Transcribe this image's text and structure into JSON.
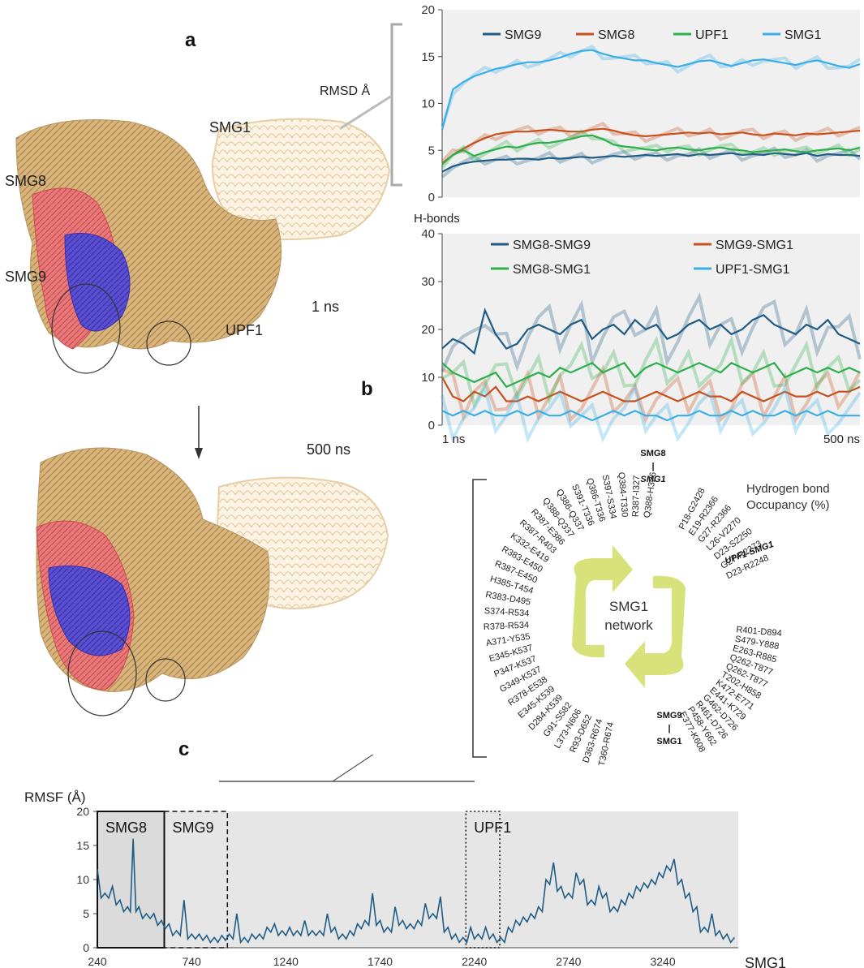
{
  "figure": {
    "panel_a": "a",
    "panel_b": "b",
    "panel_c": "c",
    "structure_labels": {
      "smg8": "SMG8",
      "smg9": "SMG9",
      "smg1": "SMG1",
      "upf1": "UPF1",
      "time_top": "1 ns",
      "time_bottom": "500 ns"
    },
    "rmsd_label": "RMSD  Å",
    "hbonds_label": "H-bonds",
    "hbonds_x_start": "1 ns",
    "hbonds_x_end": "500 ns",
    "network_center": [
      "SMG1",
      "network"
    ],
    "occupancy_title": [
      "Hydrogen bond",
      "Occupancy (%)"
    ],
    "group_smg8": [
      "SMG8",
      "|",
      "SMG1"
    ],
    "group_upf1": "UPF1-SMG1",
    "group_smg9": [
      "SMG9",
      "|",
      "SMG1"
    ],
    "pairs_left": [
      "Q388-H326",
      "R387-I327",
      "Q384-T330",
      "S397-S334",
      "Q386-T336",
      "S391-T336",
      "Q386-Q337",
      "Q388-Q337",
      "R387-E386",
      "R387-R403",
      "K332-E419",
      "R383-E450",
      "R387-E450",
      "H385-T454",
      "R383-D495",
      "S374-R534",
      "R378-R534",
      "A371-Y535",
      "E345-K537",
      "P347-K537",
      "G349-K537",
      "R378-E538",
      "E345-K539",
      "D284-K539",
      "G91-S582",
      "L373-N606",
      "R93-D652",
      "D363-R674",
      "T360-R674"
    ],
    "pairs_upf1": [
      "P18-G2428",
      "E19-R2366",
      "G27-R2366",
      "L26-V2270",
      "D23-S2250",
      "G27-R2273",
      "D23-R2248"
    ],
    "pairs_smg9": [
      "R401-D894",
      "S479-Y888",
      "E263-R885",
      "Q262-T877",
      "Q262-T877",
      "T202-H858",
      "K472-E771",
      "E441-K729",
      "G462-D726",
      "R461-D726",
      "P458-Y662",
      "E377-K608"
    ]
  },
  "chart_data": [
    {
      "type": "line",
      "id": "rmsd",
      "ylim": [
        0,
        20
      ],
      "yticks": [
        0,
        5,
        10,
        15,
        20
      ],
      "x_range_ns": [
        1,
        500
      ],
      "series": [
        {
          "name": "SMG9",
          "color": "#1f5c85",
          "values": [
            2.7,
            3.3,
            3.6,
            3.8,
            3.9,
            4.0,
            4.0,
            4.1,
            4.1,
            4.0,
            4.2,
            4.1,
            4.2,
            4.3,
            4.2,
            4.3,
            4.4,
            4.3,
            4.4,
            4.5,
            4.4,
            4.5,
            4.6,
            4.4,
            4.6,
            4.5,
            4.6,
            4.7,
            4.5,
            4.6,
            4.5,
            4.7,
            4.6,
            4.5,
            4.7,
            4.4,
            4.6,
            4.5,
            4.5,
            4.4
          ]
        },
        {
          "name": "SMG8",
          "color": "#c8501e",
          "values": [
            3.6,
            4.5,
            5.2,
            5.8,
            6.3,
            6.7,
            6.9,
            7.0,
            7.0,
            7.1,
            7.2,
            7.1,
            7.0,
            7.0,
            7.2,
            7.3,
            7.1,
            6.8,
            6.6,
            6.5,
            6.6,
            6.7,
            6.8,
            6.9,
            6.8,
            6.9,
            6.7,
            6.8,
            6.9,
            6.7,
            6.6,
            6.8,
            6.7,
            6.6,
            6.8,
            6.7,
            6.8,
            6.9,
            7.0,
            7.1
          ]
        },
        {
          "name": "UPF1",
          "color": "#2cae4a",
          "values": [
            3.5,
            4.5,
            5.0,
            4.4,
            4.8,
            5.1,
            5.4,
            5.3,
            5.6,
            5.8,
            5.8,
            6.0,
            6.2,
            6.5,
            6.6,
            6.2,
            5.6,
            5.4,
            5.3,
            5.1,
            5.0,
            5.2,
            5.3,
            5.1,
            5.0,
            5.2,
            5.3,
            5.1,
            5.0,
            4.8,
            4.9,
            5.0,
            5.1,
            4.9,
            4.8,
            5.0,
            5.1,
            5.2,
            5.0,
            5.3
          ]
        },
        {
          "name": "SMG1",
          "color": "#3aaee6",
          "values": [
            7.2,
            11.5,
            12.3,
            12.9,
            13.3,
            13.7,
            13.9,
            14.2,
            14.4,
            14.4,
            14.6,
            14.9,
            15.3,
            15.6,
            15.7,
            15.3,
            15.0,
            14.8,
            14.6,
            14.6,
            14.3,
            14.1,
            13.9,
            14.2,
            14.5,
            14.6,
            14.3,
            14.0,
            14.3,
            14.6,
            14.7,
            14.5,
            14.3,
            14.1,
            14.4,
            14.6,
            14.3,
            14.0,
            13.8,
            14.2
          ]
        }
      ]
    },
    {
      "type": "line",
      "id": "hbonds",
      "ylim": [
        0,
        40
      ],
      "yticks": [
        0,
        10,
        20,
        30,
        40
      ],
      "x_range_ns": [
        1,
        500
      ],
      "series": [
        {
          "name": "SMG8-SMG9",
          "color": "#1f5c85",
          "values": [
            16,
            18,
            17,
            15,
            24,
            19,
            16,
            17,
            20,
            21,
            20,
            19,
            21,
            22,
            18,
            20,
            21,
            19,
            22,
            20,
            21,
            18,
            19,
            21,
            22,
            20,
            21,
            19,
            20,
            22,
            23,
            21,
            20,
            19,
            21,
            20,
            22,
            19,
            18,
            17
          ]
        },
        {
          "name": "SMG9-SMG1",
          "color": "#c8501e",
          "values": [
            10,
            6,
            5,
            7,
            6,
            8,
            5,
            5,
            6,
            5,
            6,
            7,
            6,
            5,
            6,
            7,
            6,
            5,
            5,
            6,
            7,
            6,
            5,
            6,
            7,
            6,
            6,
            5,
            7,
            6,
            5,
            6,
            7,
            6,
            6,
            7,
            6,
            7,
            7,
            8
          ]
        },
        {
          "name": "SMG8-SMG1",
          "color": "#2cae4a",
          "values": [
            13,
            11,
            10,
            9,
            10,
            11,
            8,
            9,
            10,
            11,
            10,
            12,
            11,
            12,
            13,
            11,
            12,
            13,
            10,
            12,
            13,
            12,
            11,
            12,
            13,
            12,
            11,
            13,
            12,
            11,
            12,
            13,
            10,
            11,
            12,
            11,
            12,
            11,
            12,
            11
          ]
        },
        {
          "name": "UPF1-SMG1",
          "color": "#3aaee6",
          "values": [
            3,
            2,
            3,
            2,
            3,
            2,
            2,
            3,
            2,
            3,
            2,
            2,
            3,
            2,
            1,
            2,
            3,
            2,
            3,
            2,
            2,
            1,
            2,
            2,
            3,
            2,
            2,
            3,
            2,
            3,
            2,
            2,
            3,
            2,
            3,
            2,
            3,
            2,
            2,
            2
          ]
        }
      ]
    },
    {
      "type": "line",
      "id": "rmsf",
      "ylabel": "RMSF (Å)",
      "xlabel": "SMG1",
      "ylim": [
        0,
        20
      ],
      "yticks": [
        0,
        5,
        10,
        15,
        20
      ],
      "xlim": [
        240,
        3640
      ],
      "xticks": [
        240,
        740,
        1240,
        1740,
        2240,
        2740,
        3240
      ],
      "domains": [
        {
          "name": "SMG8",
          "x0": 240,
          "x1": 595,
          "style": "solid"
        },
        {
          "name": "SMG9",
          "x0": 595,
          "x1": 930,
          "style": "dashed"
        },
        {
          "name": "UPF1",
          "x0": 2195,
          "x1": 2375,
          "style": "dotted"
        }
      ],
      "series": [
        {
          "name": "SMG1",
          "color": "#1f5c85",
          "x": [
            240,
            280,
            320,
            360,
            400,
            430,
            460,
            500,
            540,
            580,
            620,
            660,
            700,
            740,
            780,
            820,
            860,
            900,
            940,
            980,
            1020,
            1060,
            1100,
            1140,
            1180,
            1220,
            1260,
            1300,
            1340,
            1380,
            1420,
            1460,
            1500,
            1540,
            1580,
            1620,
            1660,
            1700,
            1740,
            1780,
            1820,
            1860,
            1900,
            1940,
            1980,
            2020,
            2060,
            2100,
            2140,
            2180,
            2220,
            2260,
            2300,
            2340,
            2380,
            2420,
            2460,
            2500,
            2540,
            2580,
            2620,
            2660,
            2700,
            2740,
            2780,
            2820,
            2860,
            2900,
            2940,
            2980,
            3020,
            3060,
            3100,
            3140,
            3180,
            3220,
            3260,
            3300,
            3340,
            3380,
            3420,
            3460,
            3500,
            3540,
            3580,
            3620
          ],
          "y": [
            11.5,
            8,
            9,
            7,
            6,
            16,
            6,
            5,
            5,
            4,
            3.5,
            2.5,
            7,
            2,
            2,
            1.8,
            1.5,
            1.8,
            2,
            5,
            1.5,
            2,
            2,
            3,
            3.5,
            2.5,
            3,
            2.5,
            4,
            2.5,
            2.5,
            5,
            3,
            2,
            2.5,
            3.5,
            4,
            8,
            4,
            3,
            6,
            4,
            3.5,
            4,
            6.5,
            5,
            7.5,
            3,
            2,
            1.5,
            3,
            2,
            3,
            2,
            1.5,
            3,
            4,
            4.5,
            5,
            6,
            10,
            12.5,
            9,
            8,
            11,
            10,
            7,
            9,
            8,
            6,
            7,
            8,
            9,
            9.5,
            10,
            11,
            12,
            13,
            10,
            8,
            6,
            3,
            5,
            2.5,
            2,
            1.5
          ]
        }
      ]
    }
  ]
}
